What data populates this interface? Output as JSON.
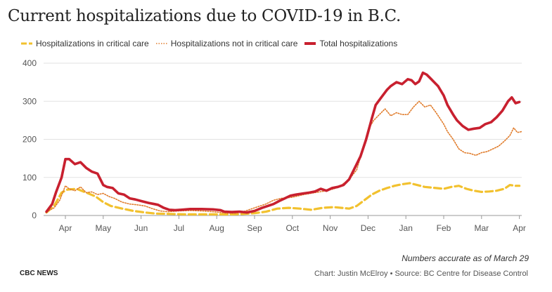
{
  "chart_data": {
    "type": "line",
    "title": "Current hospitalizations due to COVID-19 in B.C.",
    "xlabel": "",
    "ylabel": "",
    "ylim": [
      0,
      400
    ],
    "yticks": [
      "0",
      "100",
      "200",
      "300",
      "400"
    ],
    "x_ticks": [
      "Apr",
      "May",
      "Jun",
      "Jul",
      "Aug",
      "Sep",
      "Oct",
      "Nov",
      "Dec",
      "Jan",
      "Feb",
      "Mar",
      "Apr"
    ],
    "x_domain": [
      -0.5,
      12.05
    ],
    "legend_position": "top-left",
    "grid": "horizontal",
    "series": [
      {
        "name": "Hospitalizations in critical care",
        "color": "#f2c12e",
        "style": "dashed",
        "points": [
          [
            -0.5,
            8
          ],
          [
            -0.3,
            25
          ],
          [
            -0.1,
            60
          ],
          [
            0.05,
            68
          ],
          [
            0.3,
            70
          ],
          [
            0.55,
            60
          ],
          [
            0.8,
            50
          ],
          [
            1.0,
            35
          ],
          [
            1.2,
            25
          ],
          [
            1.5,
            18
          ],
          [
            1.8,
            12
          ],
          [
            2.1,
            8
          ],
          [
            2.4,
            5
          ],
          [
            2.8,
            4
          ],
          [
            3.2,
            3
          ],
          [
            3.6,
            3
          ],
          [
            4.0,
            3
          ],
          [
            4.4,
            3
          ],
          [
            4.7,
            4
          ],
          [
            5.0,
            6
          ],
          [
            5.3,
            10
          ],
          [
            5.6,
            18
          ],
          [
            5.9,
            20
          ],
          [
            6.2,
            18
          ],
          [
            6.5,
            15
          ],
          [
            6.8,
            20
          ],
          [
            7.1,
            22
          ],
          [
            7.3,
            20
          ],
          [
            7.5,
            18
          ],
          [
            7.7,
            25
          ],
          [
            7.9,
            40
          ],
          [
            8.1,
            55
          ],
          [
            8.3,
            65
          ],
          [
            8.5,
            72
          ],
          [
            8.7,
            78
          ],
          [
            8.9,
            82
          ],
          [
            9.1,
            85
          ],
          [
            9.3,
            80
          ],
          [
            9.5,
            75
          ],
          [
            9.8,
            72
          ],
          [
            10.0,
            70
          ],
          [
            10.2,
            75
          ],
          [
            10.4,
            78
          ],
          [
            10.6,
            70
          ],
          [
            10.8,
            65
          ],
          [
            11.0,
            62
          ],
          [
            11.2,
            63
          ],
          [
            11.4,
            65
          ],
          [
            11.6,
            70
          ],
          [
            11.75,
            80
          ],
          [
            11.9,
            78
          ],
          [
            12.0,
            78
          ]
        ]
      },
      {
        "name": "Hospitalizations not in critical care",
        "color": "#e07b2a",
        "style": "dotted",
        "points": [
          [
            -0.5,
            10
          ],
          [
            -0.3,
            20
          ],
          [
            -0.15,
            40
          ],
          [
            0.0,
            78
          ],
          [
            0.1,
            70
          ],
          [
            0.25,
            65
          ],
          [
            0.4,
            75
          ],
          [
            0.55,
            60
          ],
          [
            0.7,
            62
          ],
          [
            0.85,
            55
          ],
          [
            1.0,
            58
          ],
          [
            1.15,
            50
          ],
          [
            1.3,
            45
          ],
          [
            1.5,
            35
          ],
          [
            1.7,
            30
          ],
          [
            1.9,
            28
          ],
          [
            2.1,
            25
          ],
          [
            2.3,
            18
          ],
          [
            2.5,
            12
          ],
          [
            2.7,
            10
          ],
          [
            3.0,
            12
          ],
          [
            3.3,
            13
          ],
          [
            3.6,
            12
          ],
          [
            3.9,
            10
          ],
          [
            4.1,
            8
          ],
          [
            4.3,
            6
          ],
          [
            4.5,
            6
          ],
          [
            4.7,
            10
          ],
          [
            5.0,
            20
          ],
          [
            5.3,
            30
          ],
          [
            5.5,
            40
          ],
          [
            5.7,
            45
          ],
          [
            6.0,
            48
          ],
          [
            6.3,
            55
          ],
          [
            6.6,
            60
          ],
          [
            6.9,
            65
          ],
          [
            7.1,
            70
          ],
          [
            7.3,
            80
          ],
          [
            7.5,
            95
          ],
          [
            7.7,
            120
          ],
          [
            7.85,
            170
          ],
          [
            8.0,
            225
          ],
          [
            8.15,
            250
          ],
          [
            8.3,
            265
          ],
          [
            8.45,
            280
          ],
          [
            8.6,
            262
          ],
          [
            8.75,
            270
          ],
          [
            8.9,
            265
          ],
          [
            9.05,
            265
          ],
          [
            9.2,
            285
          ],
          [
            9.35,
            300
          ],
          [
            9.5,
            285
          ],
          [
            9.65,
            290
          ],
          [
            9.8,
            270
          ],
          [
            10.0,
            240
          ],
          [
            10.1,
            220
          ],
          [
            10.25,
            200
          ],
          [
            10.4,
            175
          ],
          [
            10.55,
            165
          ],
          [
            10.7,
            163
          ],
          [
            10.85,
            158
          ],
          [
            11.0,
            165
          ],
          [
            11.15,
            168
          ],
          [
            11.3,
            175
          ],
          [
            11.45,
            182
          ],
          [
            11.6,
            195
          ],
          [
            11.75,
            210
          ],
          [
            11.85,
            230
          ],
          [
            11.95,
            218
          ],
          [
            12.05,
            220
          ]
        ]
      },
      {
        "name": "Total hospitalizations",
        "color": "#c8202f",
        "style": "solid",
        "points": [
          [
            -0.5,
            10
          ],
          [
            -0.35,
            30
          ],
          [
            -0.25,
            60
          ],
          [
            -0.1,
            100
          ],
          [
            0.0,
            148
          ],
          [
            0.1,
            148
          ],
          [
            0.25,
            135
          ],
          [
            0.4,
            140
          ],
          [
            0.55,
            125
          ],
          [
            0.7,
            115
          ],
          [
            0.85,
            110
          ],
          [
            1.0,
            80
          ],
          [
            1.1,
            75
          ],
          [
            1.25,
            72
          ],
          [
            1.4,
            58
          ],
          [
            1.55,
            55
          ],
          [
            1.7,
            45
          ],
          [
            1.85,
            42
          ],
          [
            2.0,
            38
          ],
          [
            2.2,
            33
          ],
          [
            2.35,
            30
          ],
          [
            2.45,
            28
          ],
          [
            2.6,
            20
          ],
          [
            2.75,
            15
          ],
          [
            2.9,
            14
          ],
          [
            3.05,
            15
          ],
          [
            3.3,
            17
          ],
          [
            3.6,
            17
          ],
          [
            3.9,
            16
          ],
          [
            4.1,
            14
          ],
          [
            4.2,
            10
          ],
          [
            4.4,
            9
          ],
          [
            4.6,
            10
          ],
          [
            4.8,
            8
          ],
          [
            5.0,
            12
          ],
          [
            5.2,
            20
          ],
          [
            5.35,
            25
          ],
          [
            5.5,
            30
          ],
          [
            5.65,
            38
          ],
          [
            5.8,
            45
          ],
          [
            5.95,
            52
          ],
          [
            6.1,
            55
          ],
          [
            6.3,
            58
          ],
          [
            6.45,
            60
          ],
          [
            6.6,
            63
          ],
          [
            6.75,
            70
          ],
          [
            6.9,
            65
          ],
          [
            7.05,
            72
          ],
          [
            7.2,
            75
          ],
          [
            7.35,
            80
          ],
          [
            7.5,
            95
          ],
          [
            7.65,
            125
          ],
          [
            7.8,
            155
          ],
          [
            7.95,
            200
          ],
          [
            8.1,
            255
          ],
          [
            8.2,
            290
          ],
          [
            8.35,
            310
          ],
          [
            8.5,
            330
          ],
          [
            8.6,
            340
          ],
          [
            8.75,
            350
          ],
          [
            8.9,
            345
          ],
          [
            9.05,
            358
          ],
          [
            9.15,
            355
          ],
          [
            9.25,
            345
          ],
          [
            9.35,
            352
          ],
          [
            9.45,
            375
          ],
          [
            9.55,
            370
          ],
          [
            9.65,
            360
          ],
          [
            9.75,
            350
          ],
          [
            9.85,
            340
          ],
          [
            10.0,
            315
          ],
          [
            10.1,
            290
          ],
          [
            10.25,
            265
          ],
          [
            10.35,
            250
          ],
          [
            10.5,
            235
          ],
          [
            10.65,
            225
          ],
          [
            10.8,
            228
          ],
          [
            10.95,
            230
          ],
          [
            11.1,
            240
          ],
          [
            11.25,
            245
          ],
          [
            11.4,
            258
          ],
          [
            11.55,
            275
          ],
          [
            11.7,
            300
          ],
          [
            11.8,
            310
          ],
          [
            11.9,
            295
          ],
          [
            12.0,
            298
          ]
        ]
      }
    ]
  },
  "note": "Numbers accurate as of March 29",
  "brand": "CBC NEWS",
  "source": "Chart: Justin McElroy • Source: BC Centre for Disease Control"
}
